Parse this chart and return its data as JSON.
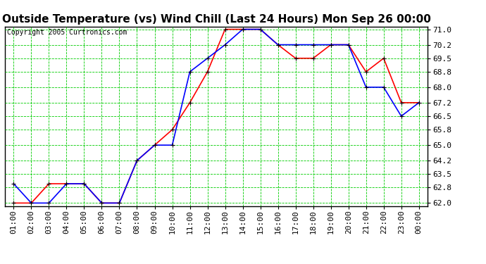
{
  "title": "Outside Temperature (vs) Wind Chill (Last 24 Hours) Mon Sep 26 00:00",
  "copyright": "Copyright 2005 Curtronics.com",
  "x_labels": [
    "01:00",
    "02:00",
    "03:00",
    "04:00",
    "05:00",
    "06:00",
    "07:00",
    "08:00",
    "09:00",
    "10:00",
    "11:00",
    "12:00",
    "13:00",
    "14:00",
    "15:00",
    "16:00",
    "17:00",
    "18:00",
    "19:00",
    "20:00",
    "21:00",
    "22:00",
    "23:00",
    "00:00"
  ],
  "temp_blue": [
    63.0,
    62.0,
    62.0,
    63.0,
    63.0,
    62.0,
    62.0,
    64.2,
    65.0,
    65.0,
    68.8,
    69.5,
    70.2,
    71.0,
    71.0,
    70.2,
    70.2,
    70.2,
    70.2,
    70.2,
    68.0,
    68.0,
    66.5,
    67.2
  ],
  "wind_red": [
    62.0,
    62.0,
    63.0,
    63.0,
    63.0,
    62.0,
    62.0,
    64.2,
    65.0,
    65.8,
    67.2,
    68.8,
    71.0,
    71.0,
    71.0,
    70.2,
    69.5,
    69.5,
    70.2,
    70.2,
    68.8,
    69.5,
    67.2,
    67.2
  ],
  "ylim_min": 62.0,
  "ylim_max": 71.0,
  "yticks": [
    62.0,
    62.8,
    63.5,
    64.2,
    65.0,
    65.8,
    66.5,
    67.2,
    68.0,
    68.8,
    69.5,
    70.2,
    71.0
  ],
  "bg_color": "#ffffff",
  "grid_color": "#00cc00",
  "line_blue": "#0000ff",
  "line_red": "#ff0000",
  "marker_color": "#000000",
  "title_fontsize": 11,
  "copyright_fontsize": 7,
  "tick_fontsize": 8
}
